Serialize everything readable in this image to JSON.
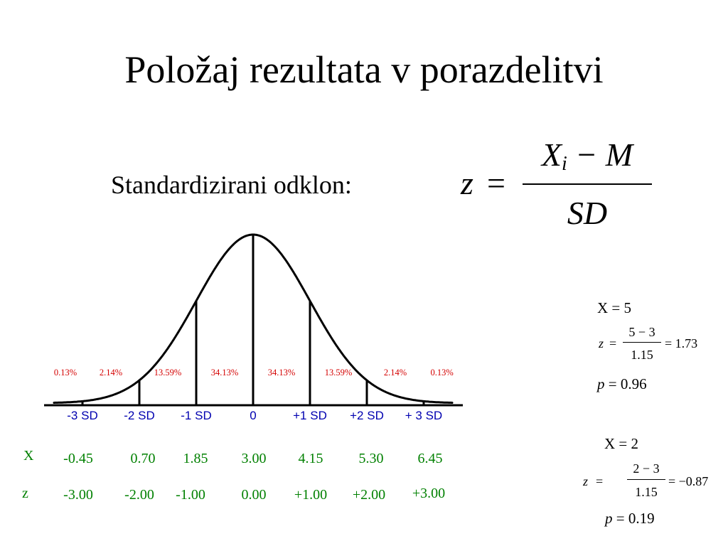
{
  "title": "Položaj rezultata v porazdelitvi",
  "label": "Standardizirani odklon:",
  "formula": {
    "lhs": "z",
    "eq": "=",
    "num_x": "X",
    "num_sub": "i",
    "num_rest": " − M",
    "den": "SD"
  },
  "chart_data": {
    "type": "area",
    "percentages": [
      "0.13%",
      "2.14%",
      "13.59%",
      "34.13%",
      "34.13%",
      "13.59%",
      "2.14%",
      "0.13%"
    ],
    "sd_labels": [
      "-3 SD",
      "-2 SD",
      "-1 SD",
      "0",
      "+1 SD",
      "+2 SD",
      "+ 3 SD"
    ],
    "sd_values": [
      -3,
      -2,
      -1,
      0,
      1,
      2,
      3
    ],
    "x_range": [
      -3.5,
      3.5
    ]
  },
  "table": {
    "x_label": "X",
    "z_label": "z",
    "x_values": [
      "-0.45",
      "0.70",
      "1.85",
      "3.00",
      "4.15",
      "5.30",
      "6.45"
    ],
    "z_values": [
      "-3.00",
      "-2.00",
      "-1.00",
      "0.00",
      "+1.00",
      "+2.00",
      "+3.00"
    ]
  },
  "examples": [
    {
      "header": "X = 5",
      "z": "z",
      "eq": "=",
      "num": "5 − 3",
      "den": "1.15",
      "result": "= 1.73",
      "p_label": "p",
      "p_value": "= 0.96"
    },
    {
      "header": "X = 2",
      "z": "z",
      "eq": "=",
      "num": "2 − 3",
      "den": "1.15",
      "result": "= −0.87",
      "p_label": "p",
      "p_value": "= 0.19"
    }
  ],
  "colors": {
    "percent": "#d40000",
    "sd_labels": "#0000b0",
    "table": "#008000"
  }
}
